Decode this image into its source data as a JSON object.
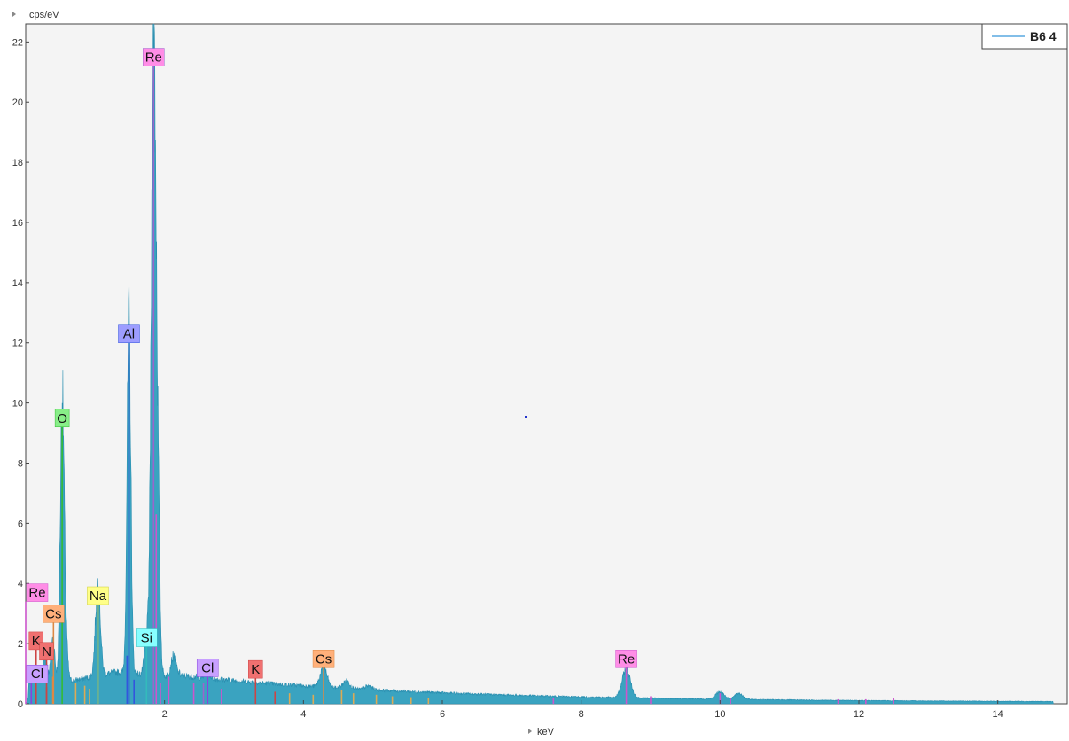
{
  "chart_data": {
    "type": "area",
    "ylabel": "cps/eV",
    "xlabel": "keV",
    "xlim": [
      0,
      15
    ],
    "ylim": [
      0,
      22.6
    ],
    "x_ticks": [
      2,
      4,
      6,
      8,
      10,
      12,
      14
    ],
    "y_ticks": [
      0,
      2,
      4,
      6,
      8,
      10,
      12,
      14,
      16,
      18,
      20,
      22
    ],
    "legend": {
      "label": "B6 4",
      "placement": "top-right",
      "color": "#58a8e0"
    },
    "series_color": "#3aa3c0",
    "background": "#f4f4f4",
    "peaks": [
      {
        "x": 0.08,
        "y": 0.6,
        "w": 0.03
      },
      {
        "x": 0.18,
        "y": 0.7,
        "w": 0.03
      },
      {
        "x": 0.28,
        "y": 1.0,
        "w": 0.03
      },
      {
        "x": 0.39,
        "y": 1.5,
        "w": 0.03
      },
      {
        "x": 0.525,
        "y": 9.0,
        "w": 0.028
      },
      {
        "x": 0.57,
        "y": 1.5,
        "w": 0.03
      },
      {
        "x": 1.04,
        "y": 3.2,
        "w": 0.035
      },
      {
        "x": 1.487,
        "y": 11.6,
        "w": 0.028
      },
      {
        "x": 1.74,
        "y": 1.2,
        "w": 0.03
      },
      {
        "x": 1.842,
        "y": 20.6,
        "w": 0.034
      },
      {
        "x": 1.9,
        "y": 5.2,
        "w": 0.03
      },
      {
        "x": 2.13,
        "y": 0.7,
        "w": 0.04
      },
      {
        "x": 2.62,
        "y": 0.15,
        "w": 0.04
      },
      {
        "x": 4.29,
        "y": 0.65,
        "w": 0.05
      },
      {
        "x": 4.62,
        "y": 0.25,
        "w": 0.05
      },
      {
        "x": 4.94,
        "y": 0.12,
        "w": 0.05
      },
      {
        "x": 8.65,
        "y": 0.95,
        "w": 0.06
      },
      {
        "x": 10.0,
        "y": 0.25,
        "w": 0.06
      },
      {
        "x": 10.27,
        "y": 0.2,
        "w": 0.06
      }
    ],
    "element_markers": [
      {
        "label": "Re",
        "x": 1.842,
        "y": 21.2,
        "color": "#ff8de6",
        "line": "#9966cc"
      },
      {
        "label": "Al",
        "x": 1.487,
        "y": 12.0,
        "color": "#9d9dff",
        "line": "#3355dd"
      },
      {
        "label": "O",
        "x": 0.525,
        "y": 9.2,
        "color": "#88ee88",
        "line": "#33bb33"
      },
      {
        "label": "Na",
        "x": 1.04,
        "y": 3.3,
        "color": "#ffff88",
        "line": "#cccc33"
      },
      {
        "label": "Re",
        "x": 0.0,
        "y": 3.4,
        "color": "#ff8de6",
        "line": "#cc55cc"
      },
      {
        "label": "Cs",
        "x": 0.4,
        "y": 2.7,
        "color": "#ffb07a",
        "line": "#dd8844"
      },
      {
        "label": "K",
        "x": 0.15,
        "y": 1.8,
        "color": "#f07070",
        "line": "#cc4444"
      },
      {
        "label": "N",
        "x": 0.3,
        "y": 1.45,
        "color": "#f07070",
        "line": "#cc4444"
      },
      {
        "label": "Cl",
        "x": 0.08,
        "y": 0.7,
        "color": "#c8a0ff",
        "line": "#8844dd"
      },
      {
        "label": "Si",
        "x": 1.74,
        "y": 1.9,
        "color": "#88ffff",
        "line": "#33bbbb"
      },
      {
        "label": "Cl",
        "x": 2.62,
        "y": 0.9,
        "color": "#c8a0ff",
        "line": "#8844dd"
      },
      {
        "label": "K",
        "x": 3.31,
        "y": 0.85,
        "color": "#f07070",
        "line": "#cc4444"
      },
      {
        "label": "Cs",
        "x": 4.29,
        "y": 1.2,
        "color": "#ffb07a",
        "line": "#dd8844"
      },
      {
        "label": "Re",
        "x": 8.65,
        "y": 1.2,
        "color": "#ff8de6",
        "line": "#cc55cc"
      }
    ],
    "marker_lines": [
      {
        "x": 0.3,
        "y": 0.55,
        "color": "#cc4444"
      },
      {
        "x": 0.39,
        "y": 0.9,
        "color": "#dd8844"
      },
      {
        "x": 0.72,
        "y": 0.7,
        "color": "#ddaa55"
      },
      {
        "x": 0.85,
        "y": 0.6,
        "color": "#ddaa55"
      },
      {
        "x": 0.92,
        "y": 0.5,
        "color": "#ddaa55"
      },
      {
        "x": 1.46,
        "y": 1.6,
        "color": "#3355dd"
      },
      {
        "x": 1.56,
        "y": 0.8,
        "color": "#3355dd"
      },
      {
        "x": 1.88,
        "y": 6.3,
        "color": "#cc55cc"
      },
      {
        "x": 1.94,
        "y": 0.7,
        "color": "#cc55cc"
      },
      {
        "x": 2.06,
        "y": 0.9,
        "color": "#cc55cc"
      },
      {
        "x": 2.42,
        "y": 0.7,
        "color": "#cc55cc"
      },
      {
        "x": 2.56,
        "y": 0.7,
        "color": "#9966cc"
      },
      {
        "x": 2.82,
        "y": 0.5,
        "color": "#cc55cc"
      },
      {
        "x": 3.59,
        "y": 0.4,
        "color": "#cc4444"
      },
      {
        "x": 3.8,
        "y": 0.35,
        "color": "#ddaa55"
      },
      {
        "x": 4.14,
        "y": 0.3,
        "color": "#ddaa55"
      },
      {
        "x": 4.55,
        "y": 0.45,
        "color": "#ddaa55"
      },
      {
        "x": 4.72,
        "y": 0.35,
        "color": "#ddaa55"
      },
      {
        "x": 5.05,
        "y": 0.3,
        "color": "#ddaa55"
      },
      {
        "x": 5.28,
        "y": 0.25,
        "color": "#ddaa55"
      },
      {
        "x": 5.55,
        "y": 0.22,
        "color": "#ddaa55"
      },
      {
        "x": 5.8,
        "y": 0.2,
        "color": "#ddaa55"
      },
      {
        "x": 7.6,
        "y": 0.2,
        "color": "#cc55cc"
      },
      {
        "x": 9.0,
        "y": 0.25,
        "color": "#cc55cc"
      },
      {
        "x": 10.0,
        "y": 0.35,
        "color": "#cc55cc"
      },
      {
        "x": 10.15,
        "y": 0.2,
        "color": "#cc55cc"
      },
      {
        "x": 11.7,
        "y": 0.15,
        "color": "#cc55cc"
      },
      {
        "x": 12.1,
        "y": 0.15,
        "color": "#cc55cc"
      },
      {
        "x": 12.5,
        "y": 0.2,
        "color": "#cc55cc"
      }
    ]
  }
}
